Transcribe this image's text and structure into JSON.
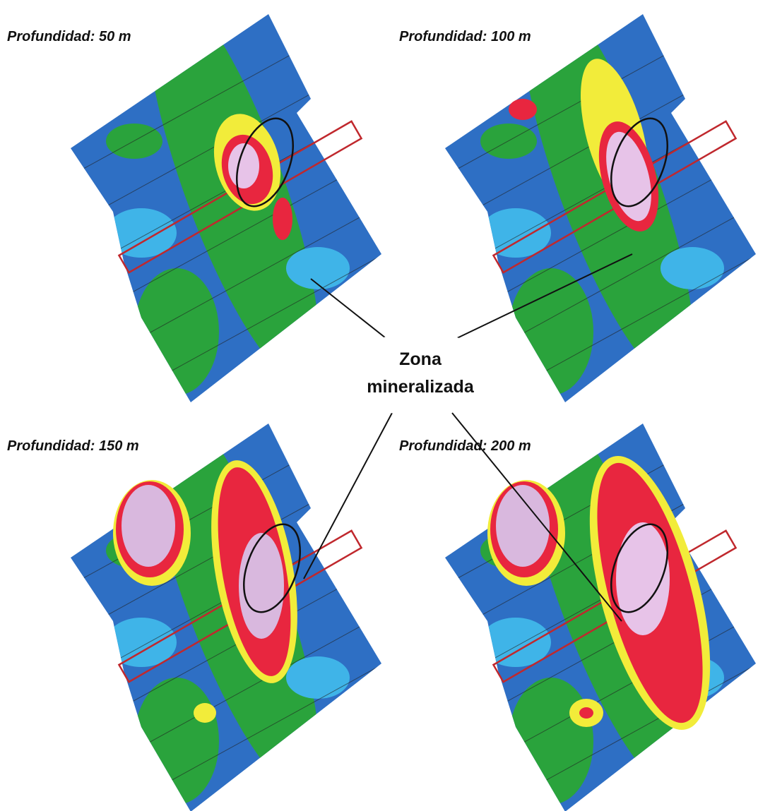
{
  "panels": [
    {
      "title": "Profundidad: 50 m"
    },
    {
      "title": "Profundidad: 100 m"
    },
    {
      "title": "Profundidad: 150 m"
    },
    {
      "title": "Profundidad: 200 m"
    }
  ],
  "callout": {
    "lines": [
      "Zona",
      "mineralizada"
    ]
  }
}
